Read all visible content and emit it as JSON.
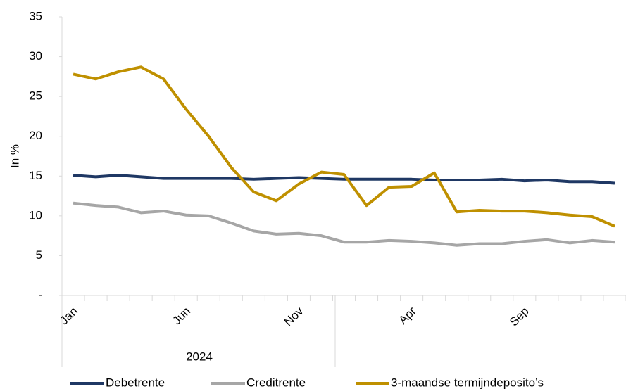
{
  "chart_data": {
    "type": "line",
    "ylabel": "In %",
    "year": "2024",
    "categories": [
      "Jan",
      null,
      null,
      null,
      null,
      "Jun",
      null,
      null,
      null,
      null,
      "Nov",
      null,
      null,
      null,
      null,
      "Apr",
      null,
      null,
      null,
      null,
      "Sep",
      null,
      null,
      null,
      null
    ],
    "series": [
      {
        "name": "Debetrente",
        "color": "#1f3864",
        "values": [
          15.1,
          14.9,
          15.1,
          14.9,
          14.7,
          14.7,
          14.7,
          14.7,
          14.6,
          14.7,
          14.8,
          14.7,
          14.6,
          14.6,
          14.6,
          14.6,
          14.5,
          14.5,
          14.5,
          14.6,
          14.4,
          14.5,
          14.3,
          14.3,
          14.1
        ]
      },
      {
        "name": "Creditrente",
        "color": "#a6a6a6",
        "values": [
          11.6,
          11.3,
          11.1,
          10.4,
          10.6,
          10.1,
          10.0,
          9.1,
          8.1,
          7.7,
          7.8,
          7.5,
          6.7,
          6.7,
          6.9,
          6.8,
          6.6,
          6.3,
          6.5,
          6.5,
          6.8,
          7.0,
          6.6,
          6.9,
          6.7
        ]
      },
      {
        "name": "3-maandse termijndeposito’s",
        "color": "#bf9000",
        "values": [
          27.8,
          27.2,
          28.1,
          28.7,
          27.2,
          23.4,
          20.0,
          16.1,
          13.0,
          11.9,
          14.0,
          15.5,
          15.2,
          11.3,
          13.6,
          13.7,
          15.4,
          10.5,
          10.7,
          10.6,
          10.6,
          10.4,
          10.1,
          9.9,
          8.7
        ]
      }
    ],
    "ylim": [
      0,
      35
    ],
    "yticks": [
      {
        "value": 0,
        "label": "-"
      },
      5,
      10,
      15,
      20,
      25,
      30,
      35
    ]
  }
}
